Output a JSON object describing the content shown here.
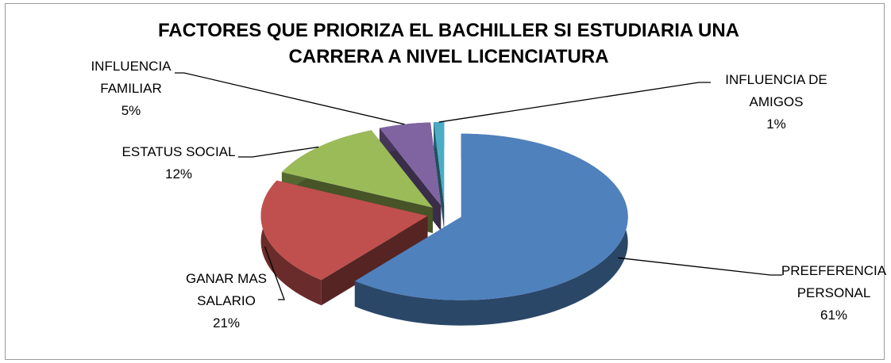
{
  "chart_data": {
    "type": "pie3d",
    "title": "FACTORES QUE PRIORIZA EL BACHILLER SI ESTUDIARIA UNA CARRERA A NIVEL LICENCIATURA",
    "categories": [
      "PREEFERENCIA PERSONAL",
      "GANAR MAS SALARIO",
      "ESTATUS SOCIAL",
      "INFLUENCIA FAMILIAR",
      "INFLUENCIA DE AMIGOS"
    ],
    "values": [
      61,
      21,
      12,
      5,
      1
    ],
    "value_labels": [
      "61%",
      "21%",
      "12%",
      "5%",
      "1%"
    ],
    "colors": [
      "#4f81bd",
      "#c0504d",
      "#9bbb59",
      "#8064a2",
      "#4bacc6"
    ]
  }
}
